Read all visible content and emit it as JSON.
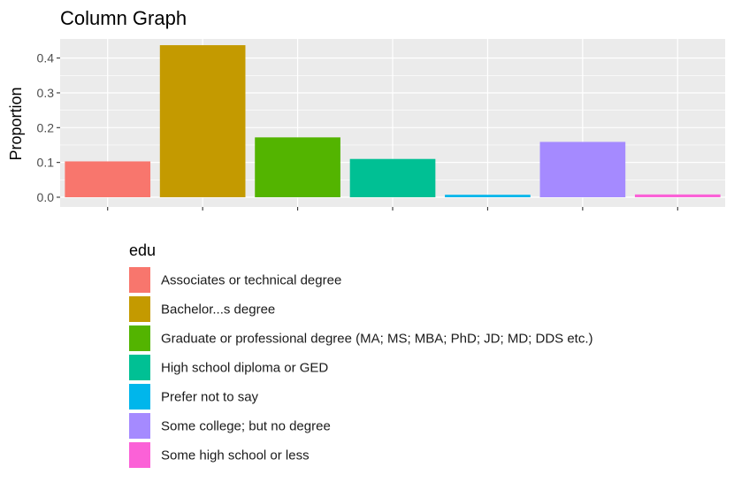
{
  "chart_data": {
    "type": "bar",
    "title": "Column Graph",
    "xlabel": "",
    "ylabel": "Proportion",
    "ylim": [
      -0.028,
      0.455
    ],
    "yticks": [
      0.0,
      0.1,
      0.2,
      0.3,
      0.4
    ],
    "ytick_labels": [
      "0.0",
      "0.1",
      "0.2",
      "0.3",
      "0.4"
    ],
    "x_tick_labels_shown": false,
    "grid": true,
    "legend": {
      "title": "edu",
      "position": "bottom"
    },
    "categories": [
      "Associates or technical degree",
      "Bachelor...s degree",
      "Graduate or professional degree (MA; MS; MBA; PhD; JD; MD; DDS etc.)",
      "High school diploma or GED",
      "Prefer not to say",
      "Some college; but no degree",
      "Some high school or less"
    ],
    "values": [
      0.103,
      0.437,
      0.172,
      0.11,
      0.007,
      0.159,
      0.008
    ],
    "colors": [
      "#F8766D",
      "#C49A00",
      "#53B400",
      "#00C094",
      "#00B6EB",
      "#A58AFF",
      "#FB61D7"
    ],
    "panel_background": "#EBEBEB",
    "grid_color": "#FFFFFF"
  }
}
